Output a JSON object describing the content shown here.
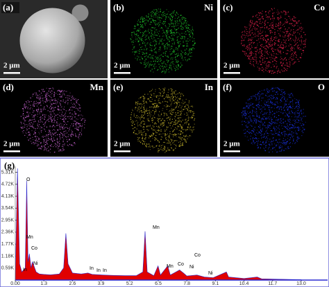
{
  "panels": [
    {
      "label": "(a)",
      "scale": "2 μm",
      "color": "#9a9a9a"
    },
    {
      "label": "(b)",
      "element": "Ni",
      "scale": "2 μm",
      "color": "#1fbf2a"
    },
    {
      "label": "(c)",
      "element": "Co",
      "scale": "2 μm",
      "color": "#e0204a"
    },
    {
      "label": "(d)",
      "element": "Mn",
      "scale": "2 μm",
      "color": "#c060c8"
    },
    {
      "label": "(e)",
      "element": "In",
      "scale": "2 μm",
      "color": "#b8a828"
    },
    {
      "label": "(f)",
      "element": "O",
      "scale": "2 μm",
      "color": "#1a30e0"
    }
  ],
  "chart_data": {
    "type": "area",
    "label": "(g)",
    "x": [
      0,
      0.1,
      0.2,
      0.3,
      0.45,
      0.52,
      0.58,
      0.64,
      0.72,
      0.78,
      0.85,
      0.95,
      1.1,
      1.3,
      1.6,
      2.0,
      2.2,
      2.3,
      2.4,
      2.6,
      3.0,
      3.3,
      3.5,
      4.0,
      4.5,
      5.0,
      5.5,
      5.8,
      5.9,
      6.0,
      6.3,
      6.49,
      6.6,
      6.93,
      7.05,
      7.47,
      7.65,
      7.8,
      8.26,
      8.6,
      9.0,
      9.6,
      9.7,
      10.4,
      11.0,
      11.2,
      12.0,
      13.0
    ],
    "series": [
      {
        "color": "#e00000",
        "values": [
          0,
          5500,
          800,
          400,
          600,
          4900,
          900,
          1300,
          600,
          900,
          700,
          400,
          300,
          280,
          260,
          300,
          600,
          2300,
          800,
          350,
          300,
          350,
          280,
          250,
          230,
          220,
          220,
          400,
          2400,
          400,
          220,
          700,
          250,
          700,
          250,
          500,
          350,
          200,
          250,
          150,
          120,
          400,
          150,
          80,
          150,
          60,
          40,
          20
        ]
      }
    ],
    "xlim": [
      0,
      14.2
    ],
    "ylim": [
      0,
      5600
    ],
    "xticks": [
      {
        "value": 0,
        "label": "0.00"
      },
      1.3,
      2.6,
      3.9,
      5.2,
      6.5,
      7.8,
      9.1,
      10.4,
      11.7,
      {
        "value": 13,
        "label": "13.0"
      }
    ],
    "yticks": [
      {
        "value": 590,
        "label": "0.59K"
      },
      {
        "value": 1180,
        "label": "1.18K"
      },
      {
        "value": 1770,
        "label": "1.77K"
      },
      {
        "value": 2360,
        "label": "2.36K"
      },
      {
        "value": 2950,
        "label": "2.95K"
      },
      {
        "value": 3540,
        "label": "3.54K"
      },
      {
        "value": 4130,
        "label": "4.13K"
      },
      {
        "value": 4720,
        "label": "4.72K"
      },
      {
        "value": 5310,
        "label": "5.31K"
      }
    ],
    "peak_labels": [
      "O",
      "Mn",
      "Co",
      "In",
      "Ni",
      "In",
      "In",
      "In",
      "Mn",
      "Mn",
      "Co",
      "Ni",
      "Co",
      "Ni"
    ]
  }
}
